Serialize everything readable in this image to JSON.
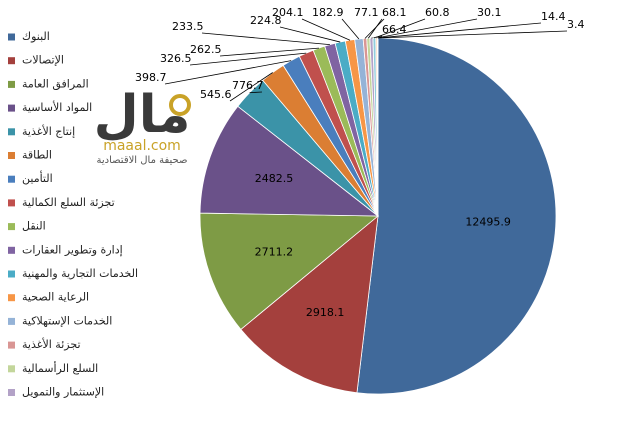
{
  "chart_data": {
    "type": "pie",
    "categories": [
      "البنوك",
      "الإتصالات",
      "المرافق العامة",
      "المواد الأساسية",
      "إنتاج الأغذية",
      "الطاقة",
      "التأمين",
      "تجزئة السلع الكمالية",
      "النقل",
      "إدارة وتطوير العقارات",
      "الخدمات التجارية والمهنية",
      "الرعاية الصحية",
      "الخدمات الإستهلاكية",
      "تجزئة الأغذية",
      "السلع الرأسمالية",
      "الإستثمار والتمويل",
      null,
      null,
      null,
      null
    ],
    "values": [
      12495.9,
      2918.1,
      2711.2,
      2482.5,
      776.7,
      545.6,
      398.7,
      326.5,
      262.5,
      233.5,
      224.8,
      204.1,
      182.9,
      77.1,
      68.1,
      66.4,
      60.8,
      30.1,
      14.4,
      3.4
    ],
    "colors": [
      "#40699a",
      "#a4403d",
      "#7e9b45",
      "#6a5189",
      "#3b93a8",
      "#db7e33",
      "#4a7ebd",
      "#c0504d",
      "#9bbb59",
      "#8064a2",
      "#4bacc6",
      "#f79646",
      "#95b3d7",
      "#d99694",
      "#c3d69b",
      "#b3a2c7",
      "#92cddc",
      "#fac090",
      "#7f9fcf",
      "#e6b9b8"
    ],
    "legend": "left"
  },
  "logo": {
    "mark": "مال",
    "site": "maaal.com",
    "caption": "صحيفة مال الاقتصادية"
  }
}
